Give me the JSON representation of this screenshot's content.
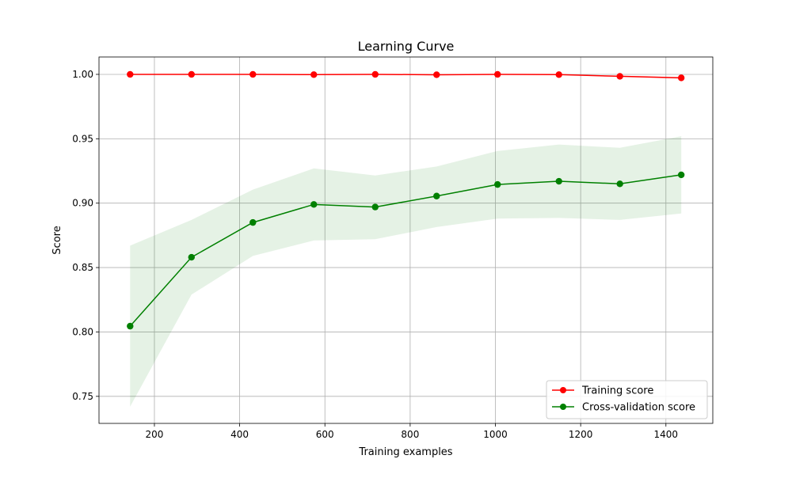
{
  "chart_data": {
    "type": "line",
    "title": "Learning Curve",
    "xlabel": "Training examples",
    "ylabel": "Score",
    "xlim": [
      70,
      1510
    ],
    "ylim": [
      0.729,
      1.0135
    ],
    "xticks": [
      200,
      400,
      600,
      800,
      1000,
      1200,
      1400
    ],
    "yticks": [
      0.75,
      0.8,
      0.85,
      0.9,
      0.95,
      1.0
    ],
    "ytick_labels": [
      "0.75",
      "0.80",
      "0.85",
      "0.90",
      "0.95",
      "1.00"
    ],
    "grid": true,
    "legend_position": "lower-right",
    "x": [
      143,
      287,
      431,
      574,
      718,
      862,
      1005,
      1149,
      1292,
      1436
    ],
    "series": [
      {
        "name": "Training score",
        "color": "#ff0000",
        "values": [
          1.0,
          1.0,
          1.0,
          0.9998,
          1.0,
          0.9997,
          1.0,
          0.9998,
          0.9985,
          0.9973
        ],
        "band_lower": [
          1.0,
          1.0,
          1.0,
          0.9995,
          0.9998,
          0.9995,
          0.9997,
          0.9995,
          0.998,
          0.9966
        ],
        "band_upper": [
          1.0,
          1.0,
          1.0,
          1.0,
          1.0,
          0.9999,
          1.0,
          1.0,
          0.999,
          0.998
        ]
      },
      {
        "name": "Cross-validation score",
        "color": "#008000",
        "values": [
          0.8045,
          0.858,
          0.885,
          0.899,
          0.897,
          0.9055,
          0.9145,
          0.917,
          0.915,
          0.922
        ],
        "band_lower": [
          0.742,
          0.829,
          0.859,
          0.871,
          0.872,
          0.8815,
          0.888,
          0.8885,
          0.887,
          0.892
        ],
        "band_upper": [
          0.867,
          0.887,
          0.9105,
          0.927,
          0.9215,
          0.9285,
          0.9405,
          0.9455,
          0.943,
          0.952
        ]
      }
    ]
  }
}
